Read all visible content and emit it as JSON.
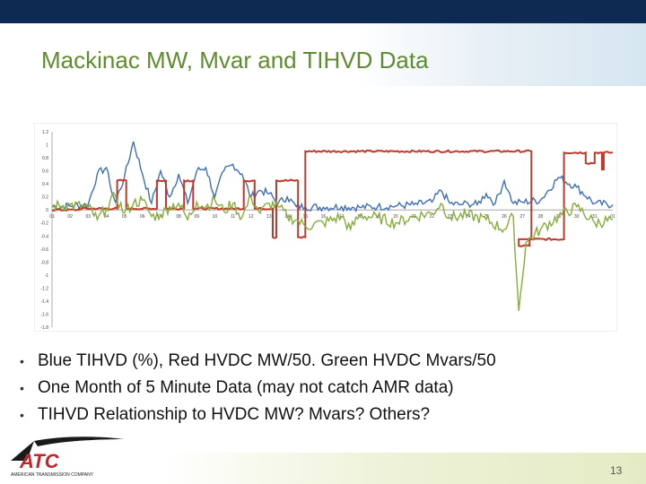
{
  "slide": {
    "title": "Mackinac MW, Mvar and TIHVD Data",
    "page_number": "13",
    "bullets": [
      "Blue TIHVD (%), Red HVDC MW/50. Green HVDC Mvars/50",
      "One Month of 5 Minute Data (may not catch AMR data)",
      "TIHVD Relationship to HVDC MW? Mvars? Others?"
    ],
    "logo": {
      "text": "ATC",
      "subtext": "AMERICAN TRANSMISSION COMPANY"
    }
  },
  "colors": {
    "title": "#5f8c2e",
    "blue": "#3f6fb5",
    "red": "#c0392b",
    "green": "#86ad3c",
    "topbar": "#0e2a52"
  },
  "chart_data": {
    "type": "line",
    "ylim": [
      -1.8,
      1.2
    ],
    "yticks": [
      "1.2",
      "1",
      "0.8",
      "0.6",
      "0.4",
      "0.2",
      "0",
      "-0.2",
      "-0.4",
      "-0.6",
      "-0.8",
      "-1",
      "-1.2",
      "-1.4",
      "-1.6",
      "-1.8"
    ],
    "xticks": [
      "01",
      "02",
      "03",
      "04",
      "05",
      "06",
      "07",
      "08",
      "09",
      "10",
      "11",
      "12",
      "13",
      "14",
      "15",
      "16",
      "17",
      "18",
      "19",
      "20",
      "21",
      "22",
      "23",
      "24",
      "25",
      "26",
      "27",
      "28",
      "29",
      "30",
      "31",
      "01"
    ],
    "series": [
      {
        "color": "#3f6fb5",
        "x": [
          1,
          2,
          3,
          3.5,
          4,
          4.2,
          4.5,
          5,
          5.5,
          6,
          6.5,
          7,
          7.5,
          8,
          8.5,
          9,
          9.5,
          10,
          10.5,
          11,
          11.5,
          12,
          12.5,
          13,
          13.5,
          14,
          14.5,
          15,
          16,
          17,
          18,
          19,
          20,
          21,
          22,
          22.5,
          23,
          23.5,
          24,
          24.5,
          25,
          25.5,
          26,
          26.2,
          26.5,
          27,
          28,
          29,
          30,
          31,
          32
        ],
        "y": [
          0.05,
          0.06,
          0.08,
          0.55,
          0.65,
          0.4,
          0.12,
          0.5,
          1.05,
          0.55,
          0.1,
          0.6,
          0.2,
          0.55,
          0.1,
          0.6,
          0.65,
          0.2,
          0.6,
          0.7,
          0.55,
          0.2,
          0.3,
          0.25,
          0.1,
          0.2,
          0.05,
          0.05,
          0.04,
          0.05,
          0.04,
          0.05,
          0.06,
          0.08,
          0.12,
          0.3,
          0.1,
          0.08,
          0.1,
          0.08,
          0.25,
          0.1,
          0.45,
          0.3,
          0.1,
          0.12,
          0.15,
          0.5,
          0.35,
          0.1,
          0.08
        ]
      },
      {
        "color": "#c0392b",
        "x": [
          1,
          2.5,
          2.5,
          4.6,
          4.6,
          5.1,
          5.1,
          6.8,
          6.8,
          7.3,
          7.3,
          8.3,
          8.3,
          8.8,
          8.8,
          11.6,
          11.6,
          12.2,
          12.2,
          13.2,
          13.2,
          13.4,
          13.4,
          14.6,
          14.6,
          15,
          15,
          27.5,
          27.5,
          26.8,
          26.8,
          27.4,
          27.4,
          29.3,
          29.3,
          30.5,
          30.5,
          31,
          31,
          31.4,
          31.4,
          31.5,
          31.5,
          32
        ],
        "y": [
          0,
          0,
          0.02,
          0.02,
          0.45,
          0.45,
          0.02,
          0.02,
          0.45,
          0.45,
          0.02,
          0.02,
          0.45,
          0.45,
          0.02,
          0.02,
          0.45,
          0.45,
          0.02,
          0.02,
          -0.42,
          -0.42,
          0.45,
          0.45,
          -0.42,
          -0.42,
          0.9,
          0.9,
          -0.45,
          -0.45,
          -0.55,
          -0.55,
          -0.45,
          -0.45,
          0.88,
          0.88,
          0.72,
          0.72,
          0.88,
          0.88,
          0.62,
          0.62,
          0.88,
          0.88
        ]
      },
      {
        "color": "#86ad3c",
        "x": [
          1,
          2,
          3,
          3.5,
          4,
          4.5,
          5,
          5.5,
          6,
          6.5,
          7,
          7.5,
          8,
          8.5,
          9,
          9.5,
          10,
          10.5,
          11,
          11.5,
          12,
          12.5,
          13,
          13.5,
          14,
          14.5,
          15,
          16,
          17,
          17.5,
          18,
          19,
          20,
          21,
          22,
          22.5,
          23,
          24,
          25,
          26,
          26.5,
          26.8,
          27.2,
          28,
          29,
          30,
          31,
          32
        ],
        "y": [
          0.05,
          0.08,
          0.04,
          -0.15,
          0.02,
          0.22,
          -0.05,
          0.1,
          0.15,
          -0.1,
          -0.08,
          0.05,
          0.1,
          -0.15,
          0.12,
          0.05,
          0.15,
          -0.02,
          0.1,
          -0.12,
          0.2,
          -0.05,
          0.1,
          0.05,
          -0.1,
          -0.15,
          -0.25,
          -0.2,
          -0.1,
          -0.3,
          -0.08,
          -0.12,
          -0.2,
          -0.1,
          -0.05,
          0.1,
          -0.12,
          -0.08,
          -0.15,
          -0.3,
          -0.1,
          -1.55,
          -0.5,
          -0.3,
          -0.1,
          0.05,
          -0.2,
          -0.15
        ]
      }
    ]
  }
}
